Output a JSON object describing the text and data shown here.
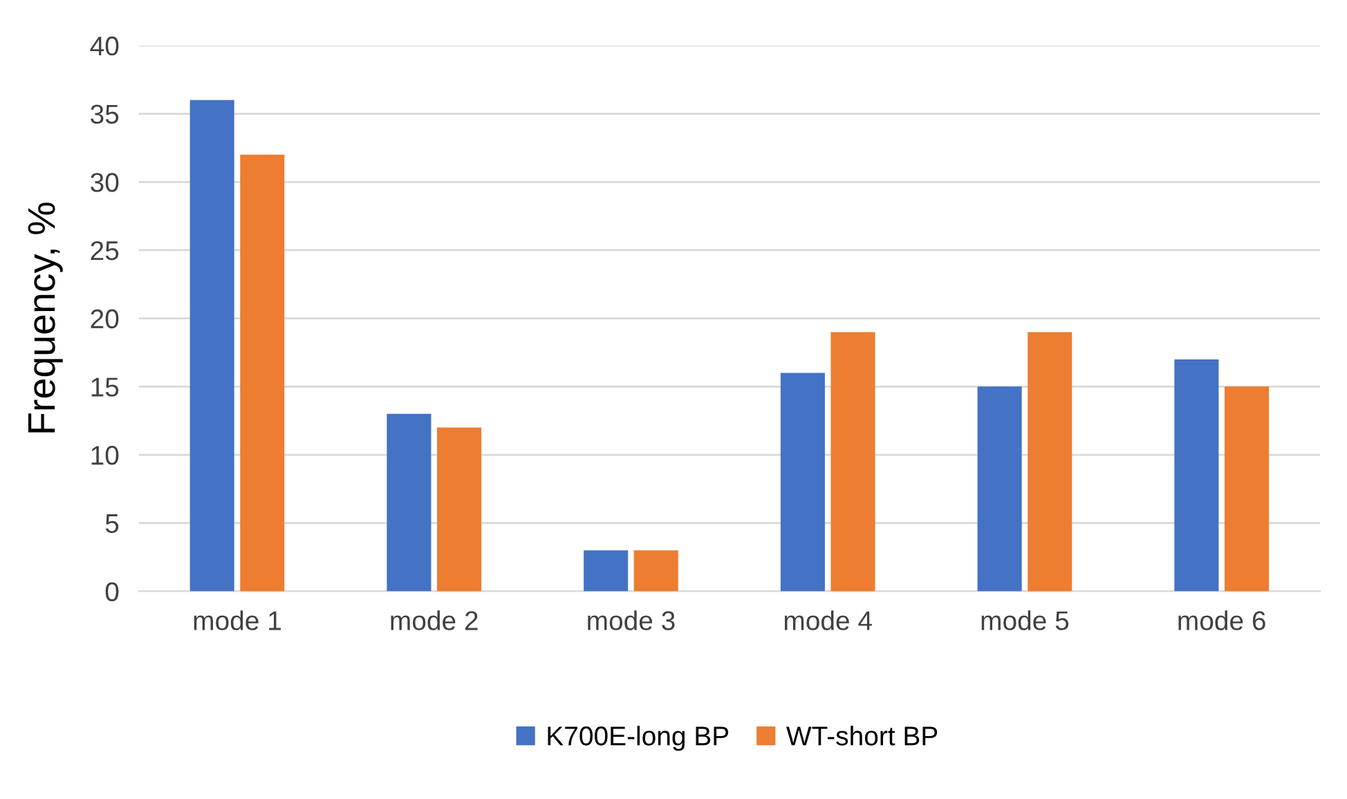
{
  "chart_data": {
    "type": "bar",
    "ylabel": "Frequency, %",
    "categories": [
      "mode 1",
      "mode 2",
      "mode 3",
      "mode 4",
      "mode 5",
      "mode 6"
    ],
    "series": [
      {
        "name": "K700E-long BP",
        "color": "#4472c4",
        "values": [
          36,
          13,
          3,
          16,
          15,
          17
        ]
      },
      {
        "name": "WT-short BP",
        "color": "#ed7d31",
        "values": [
          32,
          12,
          3,
          19,
          19,
          15
        ]
      }
    ],
    "ylim": [
      0,
      40
    ],
    "yticks": [
      0,
      5,
      10,
      15,
      20,
      25,
      30,
      35,
      40
    ],
    "grid": "y",
    "legend": "bottom"
  }
}
